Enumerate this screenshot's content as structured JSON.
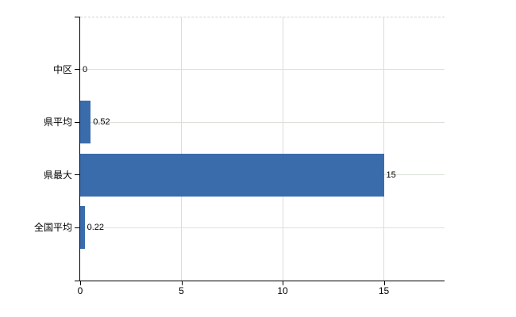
{
  "chart_data": {
    "type": "bar",
    "orientation": "horizontal",
    "title": "",
    "xlabel": "",
    "ylabel": "",
    "categories": [
      "中区",
      "県平均",
      "県最大",
      "全国平均"
    ],
    "values": [
      0,
      0.52,
      15,
      0.22
    ],
    "value_labels": [
      "0",
      "0.52",
      "15",
      "0.22"
    ],
    "x_ticks": [
      0,
      5,
      10,
      15
    ],
    "x_tick_labels": [
      "0",
      "5",
      "10",
      "15"
    ],
    "xlim": [
      0,
      18
    ],
    "grid": true,
    "legend": false,
    "colors": {
      "bar": "#3a6cac",
      "grid_horizontal": "#dbe1d9",
      "grid_vertical": "#dcdcdc",
      "plot_top_border": "#d6ced6",
      "axis": "#000000",
      "text": "#000000"
    }
  }
}
